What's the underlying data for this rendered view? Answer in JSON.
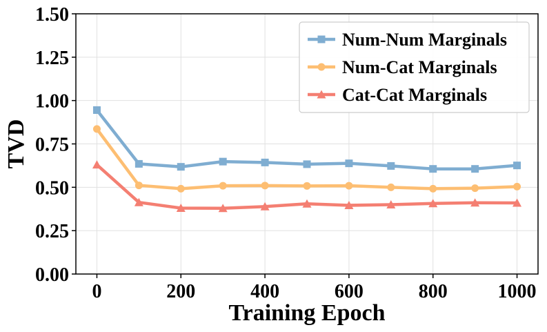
{
  "chart_data": {
    "type": "line",
    "title": "",
    "xlabel": "Training Epoch",
    "ylabel": "TVD",
    "xlim": [
      -50,
      1050
    ],
    "ylim": [
      0.0,
      1.5
    ],
    "x": [
      0,
      100,
      200,
      300,
      400,
      500,
      600,
      700,
      800,
      900,
      1000
    ],
    "xticks": [
      0,
      200,
      400,
      600,
      800,
      1000
    ],
    "xtick_labels": [
      "0",
      "200",
      "400",
      "600",
      "800",
      "1000"
    ],
    "yticks": [
      0.0,
      0.25,
      0.5,
      0.75,
      1.0,
      1.25,
      1.5
    ],
    "ytick_labels": [
      "0.00",
      "0.25",
      "0.50",
      "0.75",
      "1.00",
      "1.25",
      "1.50"
    ],
    "grid": true,
    "legend_position": "top-right",
    "series": [
      {
        "name": "Num-Num Marginals",
        "color": "#7fadd1",
        "marker": "square",
        "values": [
          0.945,
          0.635,
          0.618,
          0.648,
          0.643,
          0.633,
          0.638,
          0.623,
          0.606,
          0.606,
          0.626
        ]
      },
      {
        "name": "Num-Cat Marginals",
        "color": "#fdbe72",
        "marker": "circle",
        "values": [
          0.836,
          0.511,
          0.492,
          0.509,
          0.51,
          0.508,
          0.509,
          0.5,
          0.492,
          0.495,
          0.504
        ]
      },
      {
        "name": "Cat-Cat Marginals",
        "color": "#f47f72",
        "marker": "triangle",
        "values": [
          0.63,
          0.413,
          0.38,
          0.379,
          0.389,
          0.405,
          0.396,
          0.4,
          0.407,
          0.411,
          0.41
        ]
      }
    ]
  }
}
